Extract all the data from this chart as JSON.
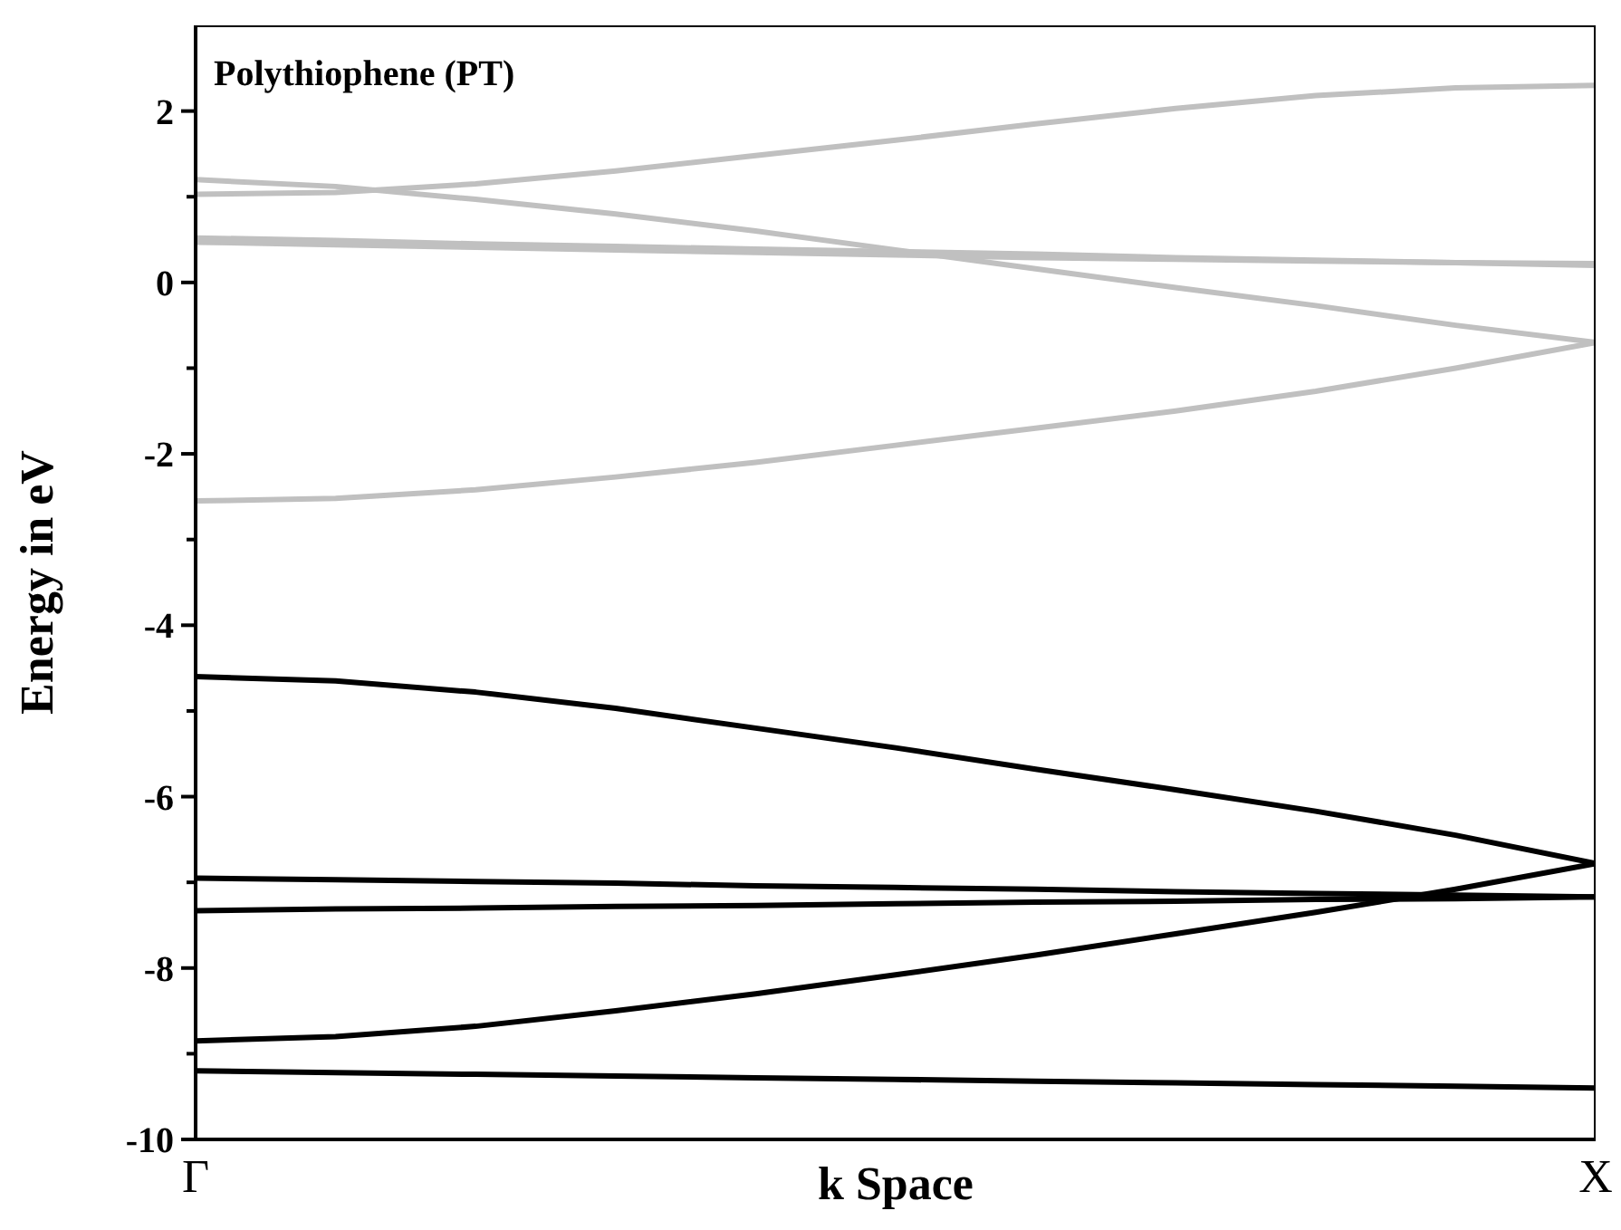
{
  "chart_data": {
    "type": "line",
    "annotations": [
      "Polythiophene (PT)"
    ],
    "xlabel": "k Space",
    "ylabel": "Energy in eV",
    "categories": [
      "Γ",
      null,
      null,
      null,
      null,
      null,
      null,
      null,
      null,
      null,
      "X"
    ],
    "ylim": [
      -10,
      3
    ],
    "yticks": [
      -10,
      {
        "value": -9,
        "label": null
      },
      -8,
      {
        "value": -7,
        "label": null
      },
      -6,
      {
        "value": -5,
        "label": null
      },
      -4,
      {
        "value": -3,
        "label": null
      },
      -2,
      {
        "value": -1,
        "label": null
      },
      0,
      {
        "value": 1,
        "label": null
      },
      2
    ],
    "grid": false,
    "legend": false,
    "marker": "none",
    "line_style": "solid",
    "series": [
      {
        "color": "#c0c0c0",
        "values": [
          1.03,
          1.05,
          1.15,
          1.3,
          1.48,
          1.66,
          1.85,
          2.03,
          2.18,
          2.27,
          2.3
        ]
      },
      {
        "color": "#c0c0c0",
        "values": [
          1.2,
          1.12,
          0.97,
          0.8,
          0.6,
          0.38,
          0.16,
          -0.06,
          -0.27,
          -0.5,
          -0.7
        ]
      },
      {
        "color": "#c0c0c0",
        "values": [
          0.52,
          0.49,
          0.45,
          0.42,
          0.39,
          0.36,
          0.33,
          0.29,
          0.26,
          0.23,
          0.2
        ]
      },
      {
        "color": "#c0c0c0",
        "values": [
          0.47,
          0.44,
          0.41,
          0.38,
          0.35,
          0.32,
          0.29,
          0.27,
          0.25,
          0.23,
          0.22
        ]
      },
      {
        "color": "#c0c0c0",
        "values": [
          -2.55,
          -2.52,
          -2.42,
          -2.27,
          -2.1,
          -1.9,
          -1.7,
          -1.5,
          -1.27,
          -1.0,
          -0.7
        ]
      },
      {
        "color": "#000000",
        "values": [
          -4.6,
          -4.65,
          -4.78,
          -4.97,
          -5.2,
          -5.43,
          -5.68,
          -5.92,
          -6.17,
          -6.45,
          -6.78
        ]
      },
      {
        "color": "#000000",
        "values": [
          -6.95,
          -6.97,
          -6.99,
          -7.01,
          -7.04,
          -7.06,
          -7.08,
          -7.11,
          -7.13,
          -7.15,
          -7.17
        ]
      },
      {
        "color": "#000000",
        "values": [
          -7.33,
          -7.31,
          -7.3,
          -7.28,
          -7.27,
          -7.25,
          -7.23,
          -7.22,
          -7.2,
          -7.19,
          -7.17
        ]
      },
      {
        "color": "#000000",
        "values": [
          -8.85,
          -8.8,
          -8.68,
          -8.5,
          -8.3,
          -8.08,
          -7.85,
          -7.6,
          -7.35,
          -7.08,
          -6.78
        ]
      },
      {
        "color": "#000000",
        "values": [
          -9.2,
          -9.22,
          -9.24,
          -9.26,
          -9.28,
          -9.3,
          -9.32,
          -9.34,
          -9.36,
          -9.38,
          -9.4
        ]
      }
    ]
  }
}
